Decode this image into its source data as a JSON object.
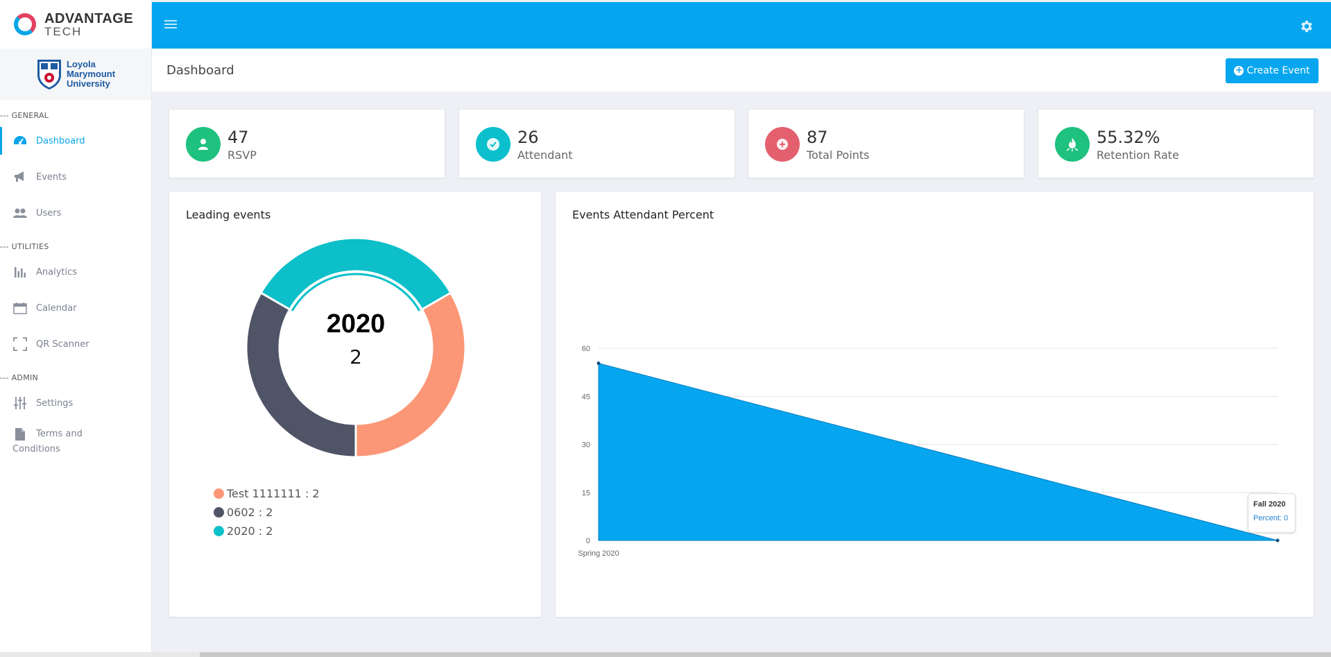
{
  "brand": {
    "name": "ADVANTAGE",
    "sub": "TECH"
  },
  "university": {
    "lines": [
      "Loyola",
      "Marymount",
      "University"
    ]
  },
  "sidebar": {
    "sections": [
      {
        "label": "--- GENERAL"
      },
      {
        "label": "--- UTILITIES"
      },
      {
        "label": "--- ADMIN"
      }
    ],
    "items": [
      {
        "label": "Dashboard",
        "icon": "dashboard-gauge-icon"
      },
      {
        "label": "Events",
        "icon": "megaphone-icon"
      },
      {
        "label": "Users",
        "icon": "users-icon"
      },
      {
        "label": "Analytics",
        "icon": "bar-chart-icon"
      },
      {
        "label": "Calendar",
        "icon": "calendar-icon"
      },
      {
        "label": "QR Scanner",
        "icon": "qr-scan-icon"
      },
      {
        "label": "Settings",
        "icon": "sliders-icon"
      },
      {
        "label": "Terms and Conditions",
        "icon": "document-icon"
      }
    ]
  },
  "header": {
    "title": "Dashboard",
    "create_label": "Create Event"
  },
  "stats": [
    {
      "value": "47",
      "label": "RSVP",
      "color": "#1ec17e",
      "icon": "user-icon"
    },
    {
      "value": "26",
      "label": "Attendant",
      "color": "#0cbfcc",
      "icon": "check-icon"
    },
    {
      "value": "87",
      "label": "Total Points",
      "color": "#e4606f",
      "icon": "plus-icon"
    },
    {
      "value": "55.32%",
      "label": "Retention Rate",
      "color": "#1ec17e",
      "icon": "fire-icon"
    }
  ],
  "leading": {
    "title": "Leading events",
    "center_title": "2020",
    "center_value": "2",
    "legend": [
      {
        "text": "Test 1111111 : 2",
        "color": "#fb9777"
      },
      {
        "text": "0602 : 2",
        "color": "#4f5466"
      },
      {
        "text": "2020 : 2",
        "color": "#0cbfc8"
      }
    ]
  },
  "attendance": {
    "title": "Events Attendant Percent",
    "tooltip_title": "Fall 2020",
    "tooltip_value": "Percent: 0"
  },
  "chart_data": [
    {
      "type": "pie",
      "labels": [
        "Test 1111111",
        "0602",
        "2020"
      ],
      "values": [
        2,
        2,
        2
      ],
      "colors": [
        "#fb9777",
        "#4f5466",
        "#0cbfc8"
      ],
      "title": "Leading events"
    },
    {
      "type": "area",
      "title": "Events Attendant Percent",
      "categories": [
        "Spring 2020",
        "Fall 2020"
      ],
      "series": [
        {
          "name": "Percent",
          "values": [
            55.32,
            0
          ]
        }
      ],
      "ylim": [
        0,
        60
      ],
      "yticks": [
        0,
        15,
        30,
        45,
        60
      ],
      "color": "#05a6ef",
      "grid": true
    }
  ]
}
